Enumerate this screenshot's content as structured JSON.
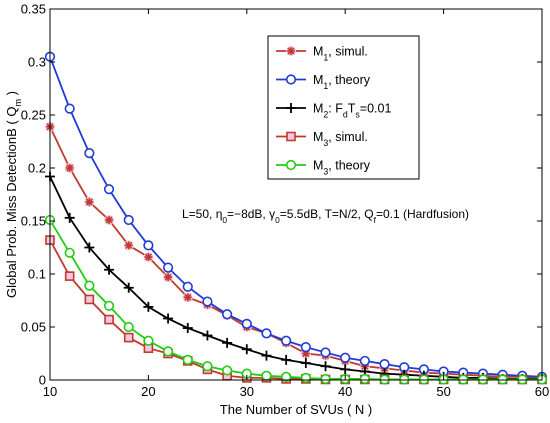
{
  "chart_data": {
    "type": "line",
    "xlabel": "The Number of SVUs ( N )",
    "ylabel": "Global Prob. Miss DetectionB ( Q",
    "ylabel_sub": "m",
    "ylabel_end": " )",
    "xlim": [
      10,
      60
    ],
    "ylim": [
      0,
      0.35
    ],
    "xticks": [
      10,
      20,
      30,
      40,
      50,
      60
    ],
    "yticks": [
      0,
      0.05,
      0.1,
      0.15,
      0.2,
      0.25,
      0.3,
      0.35
    ],
    "xtick_labels": [
      "10",
      "20",
      "30",
      "40",
      "50",
      "60"
    ],
    "ytick_labels": [
      "0",
      "0.05",
      "0.1",
      "0.15",
      "0.2",
      "0.25",
      "0.3",
      "0.35"
    ],
    "grid": false,
    "legend_position": "top-right",
    "annotation": {
      "parts": [
        "L=50,  η",
        "0",
        "=−8dB,  γ",
        "0",
        "=5.5dB, T=N/2, Q",
        "f",
        "=0.1 (Hardfusion)"
      ]
    },
    "x": [
      10,
      12,
      14,
      16,
      18,
      20,
      22,
      24,
      26,
      28,
      30,
      32,
      34,
      36,
      38,
      40,
      42,
      44,
      46,
      48,
      50,
      52,
      54,
      56,
      58,
      60
    ],
    "series": [
      {
        "legend": [
          "M",
          "1",
          ", simul."
        ],
        "color": "#c0392b",
        "marker": "star",
        "fill": "#f7c6e2",
        "values": [
          0.239,
          0.2,
          0.168,
          0.151,
          0.127,
          0.116,
          0.097,
          0.078,
          0.071,
          0.061,
          0.05,
          0.044,
          0.035,
          0.025,
          0.023,
          0.018,
          0.013,
          0.011,
          0.009,
          0.007,
          0.006,
          0.005,
          0.004,
          0.003,
          0.003,
          0.002
        ]
      },
      {
        "legend": [
          "M",
          "1",
          ", theory"
        ],
        "color": "#1f3bd6",
        "marker": "circle",
        "fill": "#ffffff",
        "values": [
          0.305,
          0.256,
          0.214,
          0.18,
          0.151,
          0.127,
          0.106,
          0.088,
          0.074,
          0.062,
          0.053,
          0.044,
          0.037,
          0.031,
          0.026,
          0.021,
          0.018,
          0.015,
          0.012,
          0.01,
          0.008,
          0.007,
          0.006,
          0.005,
          0.004,
          0.003
        ]
      },
      {
        "legend": [
          "M",
          "2",
          ": F",
          "d",
          "T",
          "s",
          "=0.01"
        ],
        "color": "#000000",
        "marker": "plus",
        "fill": "#000000",
        "values": [
          0.192,
          0.153,
          0.125,
          0.104,
          0.087,
          0.069,
          0.058,
          0.049,
          0.042,
          0.035,
          0.029,
          0.023,
          0.019,
          0.016,
          0.013,
          0.01,
          0.008,
          0.006,
          0.005,
          0.004,
          0.003,
          0.002,
          0.002,
          0.001,
          0.001,
          0.001
        ]
      },
      {
        "legend": [
          "M",
          "3",
          ", simul."
        ],
        "color": "#c0392b",
        "marker": "square",
        "fill": "#f7c6e2",
        "values": [
          0.132,
          0.098,
          0.076,
          0.057,
          0.04,
          0.03,
          0.025,
          0.018,
          0.01,
          0.004,
          0.002,
          0.002,
          0.001,
          0.001,
          0.0005,
          0.0005,
          0.0005,
          0.0005,
          0.0005,
          0.0005,
          0.0005,
          0.0005,
          0.0005,
          0.0005,
          0.0005,
          0.0005
        ]
      },
      {
        "legend": [
          "M",
          "3",
          ", theory"
        ],
        "color": "#22cc11",
        "marker": "circle",
        "fill": "#ffffff",
        "values": [
          0.151,
          0.12,
          0.089,
          0.07,
          0.05,
          0.037,
          0.027,
          0.019,
          0.013,
          0.009,
          0.006,
          0.004,
          0.003,
          0.002,
          0.001,
          0.001,
          0.001,
          0.0005,
          0.0005,
          0.0005,
          0.0005,
          0.0005,
          0.0005,
          0.0005,
          0.0005,
          0.0005
        ]
      }
    ]
  }
}
